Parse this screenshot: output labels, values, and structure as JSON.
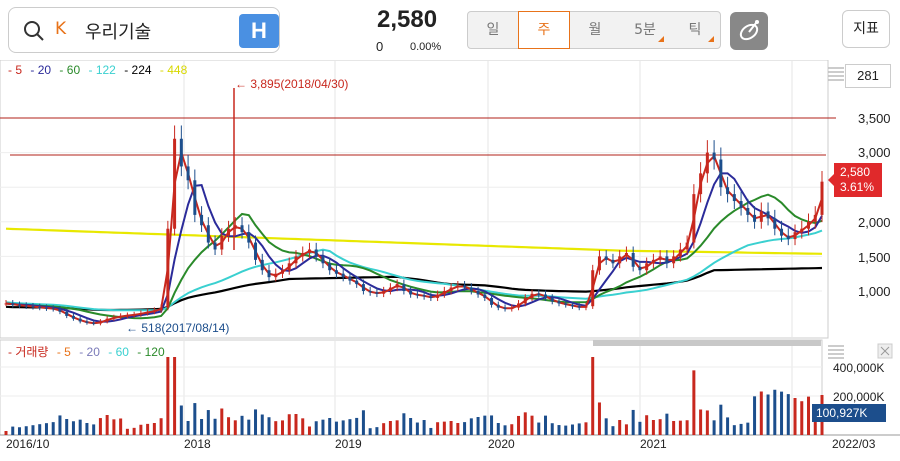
{
  "header": {
    "market_badge": "K",
    "stock_name": "우리기술",
    "h_button_label": "H",
    "price": "2,580",
    "change": "0",
    "change_pct": "0.00%"
  },
  "period_tabs": [
    {
      "label": "일",
      "active": false
    },
    {
      "label": "주",
      "active": true
    },
    {
      "label": "월",
      "active": false
    },
    {
      "label": "5분",
      "active": false
    },
    {
      "label": "틱",
      "active": false
    }
  ],
  "indicator_button": "지표",
  "count": "281",
  "ma_legend": [
    {
      "label": "5",
      "color": "#c8281e"
    },
    {
      "label": "20",
      "color": "#2b2b9a"
    },
    {
      "label": "60",
      "color": "#2a8a2a"
    },
    {
      "label": "122",
      "color": "#3ad0d0"
    },
    {
      "label": "224",
      "color": "#000000"
    },
    {
      "label": "448",
      "color": "#e8e800"
    }
  ],
  "vol_legend": [
    {
      "label": "거래량",
      "color": "#c8281e"
    },
    {
      "label": "5",
      "color": "#e8731a"
    },
    {
      "label": "20",
      "color": "#7a7ab8"
    },
    {
      "label": "60",
      "color": "#3ad0d0"
    },
    {
      "label": "120",
      "color": "#2a8a2a"
    }
  ],
  "annotations": {
    "high": "3,895(2018/04/30)",
    "low": "518(2017/08/14)"
  },
  "price_tag": {
    "price": "2,580",
    "pct": "3.61%"
  },
  "volume_tag": "100,927K",
  "colors": {
    "up": "#c8281e",
    "down": "#1c4e8c",
    "accent": "#e8731a",
    "h_button": "#4a90e2"
  },
  "chart_data": {
    "type": "candlestick",
    "x_ticks": [
      "2016/10",
      "2018",
      "2019",
      "2020",
      "2021",
      "2022/03"
    ],
    "y_ticks": [
      "3,500",
      "3,000",
      "2,500",
      "2,000",
      "1,500",
      "1,000"
    ],
    "y_ticks_values": [
      3500,
      3000,
      2500,
      2000,
      1500,
      1000
    ],
    "ylim": [
      480,
      4000
    ],
    "volume_ticks": [
      "400,000K",
      "200,000K"
    ],
    "volume_ticks_values": [
      400000,
      200000
    ],
    "horizontal_lines": [
      3500,
      3000
    ],
    "close_series": [
      820,
      800,
      790,
      780,
      770,
      760,
      750,
      740,
      700,
      640,
      600,
      560,
      540,
      530,
      560,
      600,
      620,
      640,
      650,
      660,
      680,
      700,
      720,
      760,
      1900,
      3200,
      2800,
      2600,
      2100,
      1950,
      1700,
      1600,
      1800,
      1900,
      1950,
      1850,
      1700,
      1450,
      1300,
      1200,
      1250,
      1300,
      1400,
      1500,
      1550,
      1600,
      1500,
      1400,
      1300,
      1250,
      1200,
      1150,
      1100,
      1000,
      980,
      960,
      1000,
      1050,
      1100,
      1000,
      950,
      940,
      920,
      900,
      950,
      1000,
      1050,
      1080,
      1050,
      1000,
      950,
      900,
      800,
      760,
      740,
      760,
      820,
      900,
      960,
      950,
      900,
      850,
      820,
      800,
      780,
      760,
      780,
      1300,
      1500,
      1450,
      1400,
      1500,
      1550,
      1350,
      1300,
      1400,
      1450,
      1500,
      1400,
      1500,
      1600,
      1700,
      2400,
      2700,
      3000,
      2900,
      2500,
      2400,
      2300,
      2200,
      2100,
      2000,
      2150,
      2050,
      1900,
      1800,
      1750,
      1850,
      1900,
      2000,
      2100,
      2580
    ],
    "ma": {
      "5": [],
      "20": [],
      "60": [],
      "122": [],
      "224": [],
      "448": []
    }
  }
}
